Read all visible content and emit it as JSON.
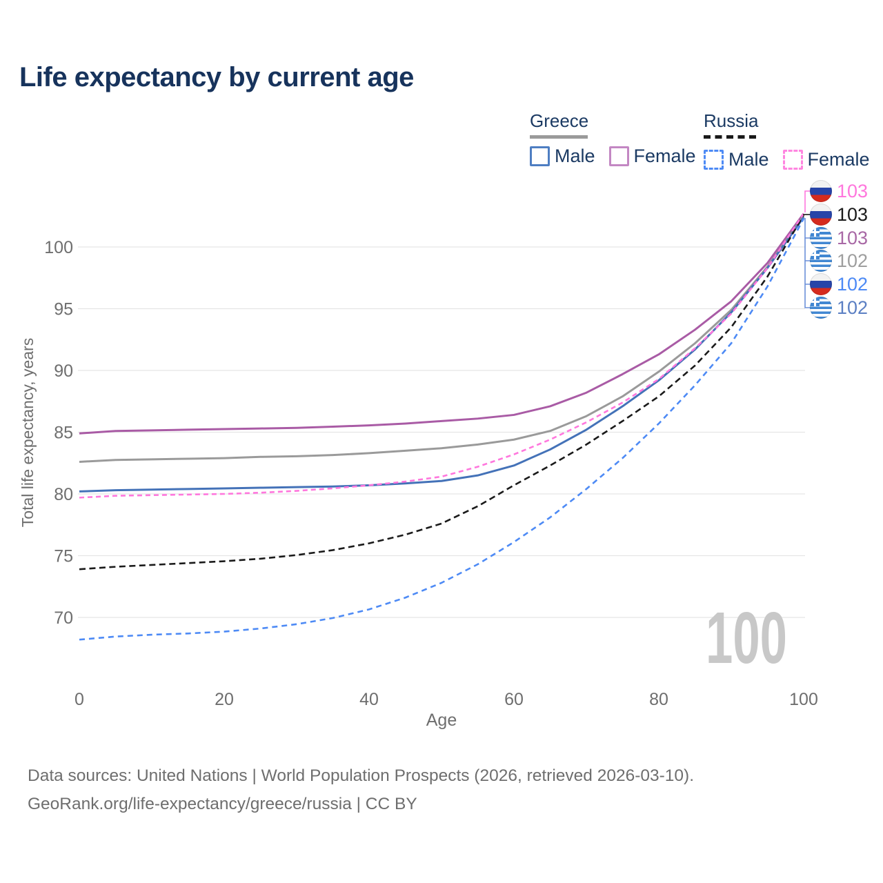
{
  "title": "Life expectancy by current age",
  "legend": {
    "groups": [
      {
        "country": "Greece",
        "line_style": "solid",
        "items": [
          {
            "label": "Male",
            "color": "#4e7ec2",
            "dashed": false
          },
          {
            "label": "Female",
            "color": "#c387c3",
            "dashed": false
          }
        ]
      },
      {
        "country": "Russia",
        "line_style": "dashed",
        "items": [
          {
            "label": "Male",
            "color": "#4d8af5",
            "dashed": true
          },
          {
            "label": "Female",
            "color": "#ff85e0",
            "dashed": true
          }
        ]
      }
    ]
  },
  "chart_data": {
    "type": "line",
    "title": "Life expectancy by current age",
    "xlabel": "Age",
    "ylabel": "Total life expectancy, years",
    "xlim": [
      0,
      100
    ],
    "ylim": [
      66.5,
      103.5
    ],
    "x_ticks": [
      0,
      20,
      40,
      60,
      80,
      100
    ],
    "y_ticks": [
      70,
      75,
      80,
      85,
      90,
      95,
      100
    ],
    "grid": "horizontal",
    "legend_position": "top-right",
    "watermark": "100",
    "x": [
      0,
      5,
      10,
      15,
      20,
      25,
      30,
      35,
      40,
      45,
      50,
      55,
      60,
      65,
      70,
      75,
      80,
      85,
      90,
      95,
      100
    ],
    "series": [
      {
        "name": "Greece Female",
        "country": "Greece",
        "sex": "Female",
        "color": "#a95ba5",
        "dash": "solid",
        "end_value": 103,
        "values": [
          84.9,
          85.1,
          85.15,
          85.2,
          85.25,
          85.3,
          85.35,
          85.45,
          85.55,
          85.7,
          85.9,
          86.1,
          86.4,
          87.1,
          88.2,
          89.7,
          91.3,
          93.3,
          95.6,
          98.7,
          102.7
        ]
      },
      {
        "name": "Greece Total",
        "country": "Greece",
        "sex": "Both",
        "color": "#9a9a9a",
        "dash": "solid",
        "end_value": 102,
        "values": [
          82.6,
          82.75,
          82.8,
          82.85,
          82.9,
          83.0,
          83.05,
          83.15,
          83.3,
          83.5,
          83.7,
          84.0,
          84.4,
          85.1,
          86.3,
          87.9,
          89.9,
          92.2,
          94.9,
          98.4,
          102.5
        ]
      },
      {
        "name": "Greece Male",
        "country": "Greece",
        "sex": "Male",
        "color": "#4472b8",
        "dash": "solid",
        "end_value": 102,
        "values": [
          80.2,
          80.3,
          80.35,
          80.4,
          80.45,
          80.5,
          80.55,
          80.6,
          80.7,
          80.85,
          81.05,
          81.5,
          82.3,
          83.6,
          85.2,
          87.1,
          89.2,
          91.7,
          94.7,
          98.3,
          102.4
        ]
      },
      {
        "name": "Russia Total",
        "country": "Russia",
        "sex": "Both",
        "color": "#1a1a1a",
        "dash": "dashed",
        "end_value": 103,
        "values": [
          73.9,
          74.1,
          74.25,
          74.4,
          74.55,
          74.75,
          75.05,
          75.45,
          76.0,
          76.7,
          77.6,
          79.0,
          80.7,
          82.3,
          84.0,
          85.9,
          87.9,
          90.4,
          93.5,
          97.6,
          102.6
        ]
      },
      {
        "name": "Russia Female",
        "country": "Russia",
        "sex": "Female",
        "color": "#ff77dd",
        "dash": "dashed",
        "end_value": 103,
        "values": [
          79.7,
          79.85,
          79.9,
          79.95,
          80.0,
          80.1,
          80.25,
          80.45,
          80.7,
          81.0,
          81.4,
          82.2,
          83.2,
          84.4,
          85.8,
          87.4,
          89.3,
          91.8,
          94.6,
          98.3,
          102.7
        ]
      },
      {
        "name": "Russia Male",
        "country": "Russia",
        "sex": "Male",
        "color": "#4d8af5",
        "dash": "dashed",
        "end_value": 102,
        "values": [
          68.2,
          68.45,
          68.6,
          68.7,
          68.85,
          69.1,
          69.45,
          69.95,
          70.65,
          71.6,
          72.8,
          74.3,
          76.1,
          78.1,
          80.4,
          82.9,
          85.7,
          88.8,
          92.2,
          96.8,
          102.3
        ]
      }
    ],
    "end_labels": [
      {
        "text": "103",
        "color": "#ff77dd",
        "flag": "russia",
        "series": "Russia Female"
      },
      {
        "text": "103",
        "color": "#1a1a1a",
        "flag": "russia",
        "series": "Russia Total"
      },
      {
        "text": "103",
        "color": "#a868a5",
        "flag": "greece",
        "series": "Greece Female"
      },
      {
        "text": "102",
        "color": "#9e9e9e",
        "flag": "greece",
        "series": "Greece Total"
      },
      {
        "text": "102",
        "color": "#4d8af5",
        "flag": "russia",
        "series": "Russia Male"
      },
      {
        "text": "102",
        "color": "#5b7fc3",
        "flag": "greece",
        "series": "Greece Male"
      }
    ]
  },
  "footer": {
    "line1": "Data sources: United Nations | World Population Prospects (2026, retrieved 2026-03-10).",
    "line2": "GeoRank.org/life-expectancy/greece/russia | CC BY"
  }
}
